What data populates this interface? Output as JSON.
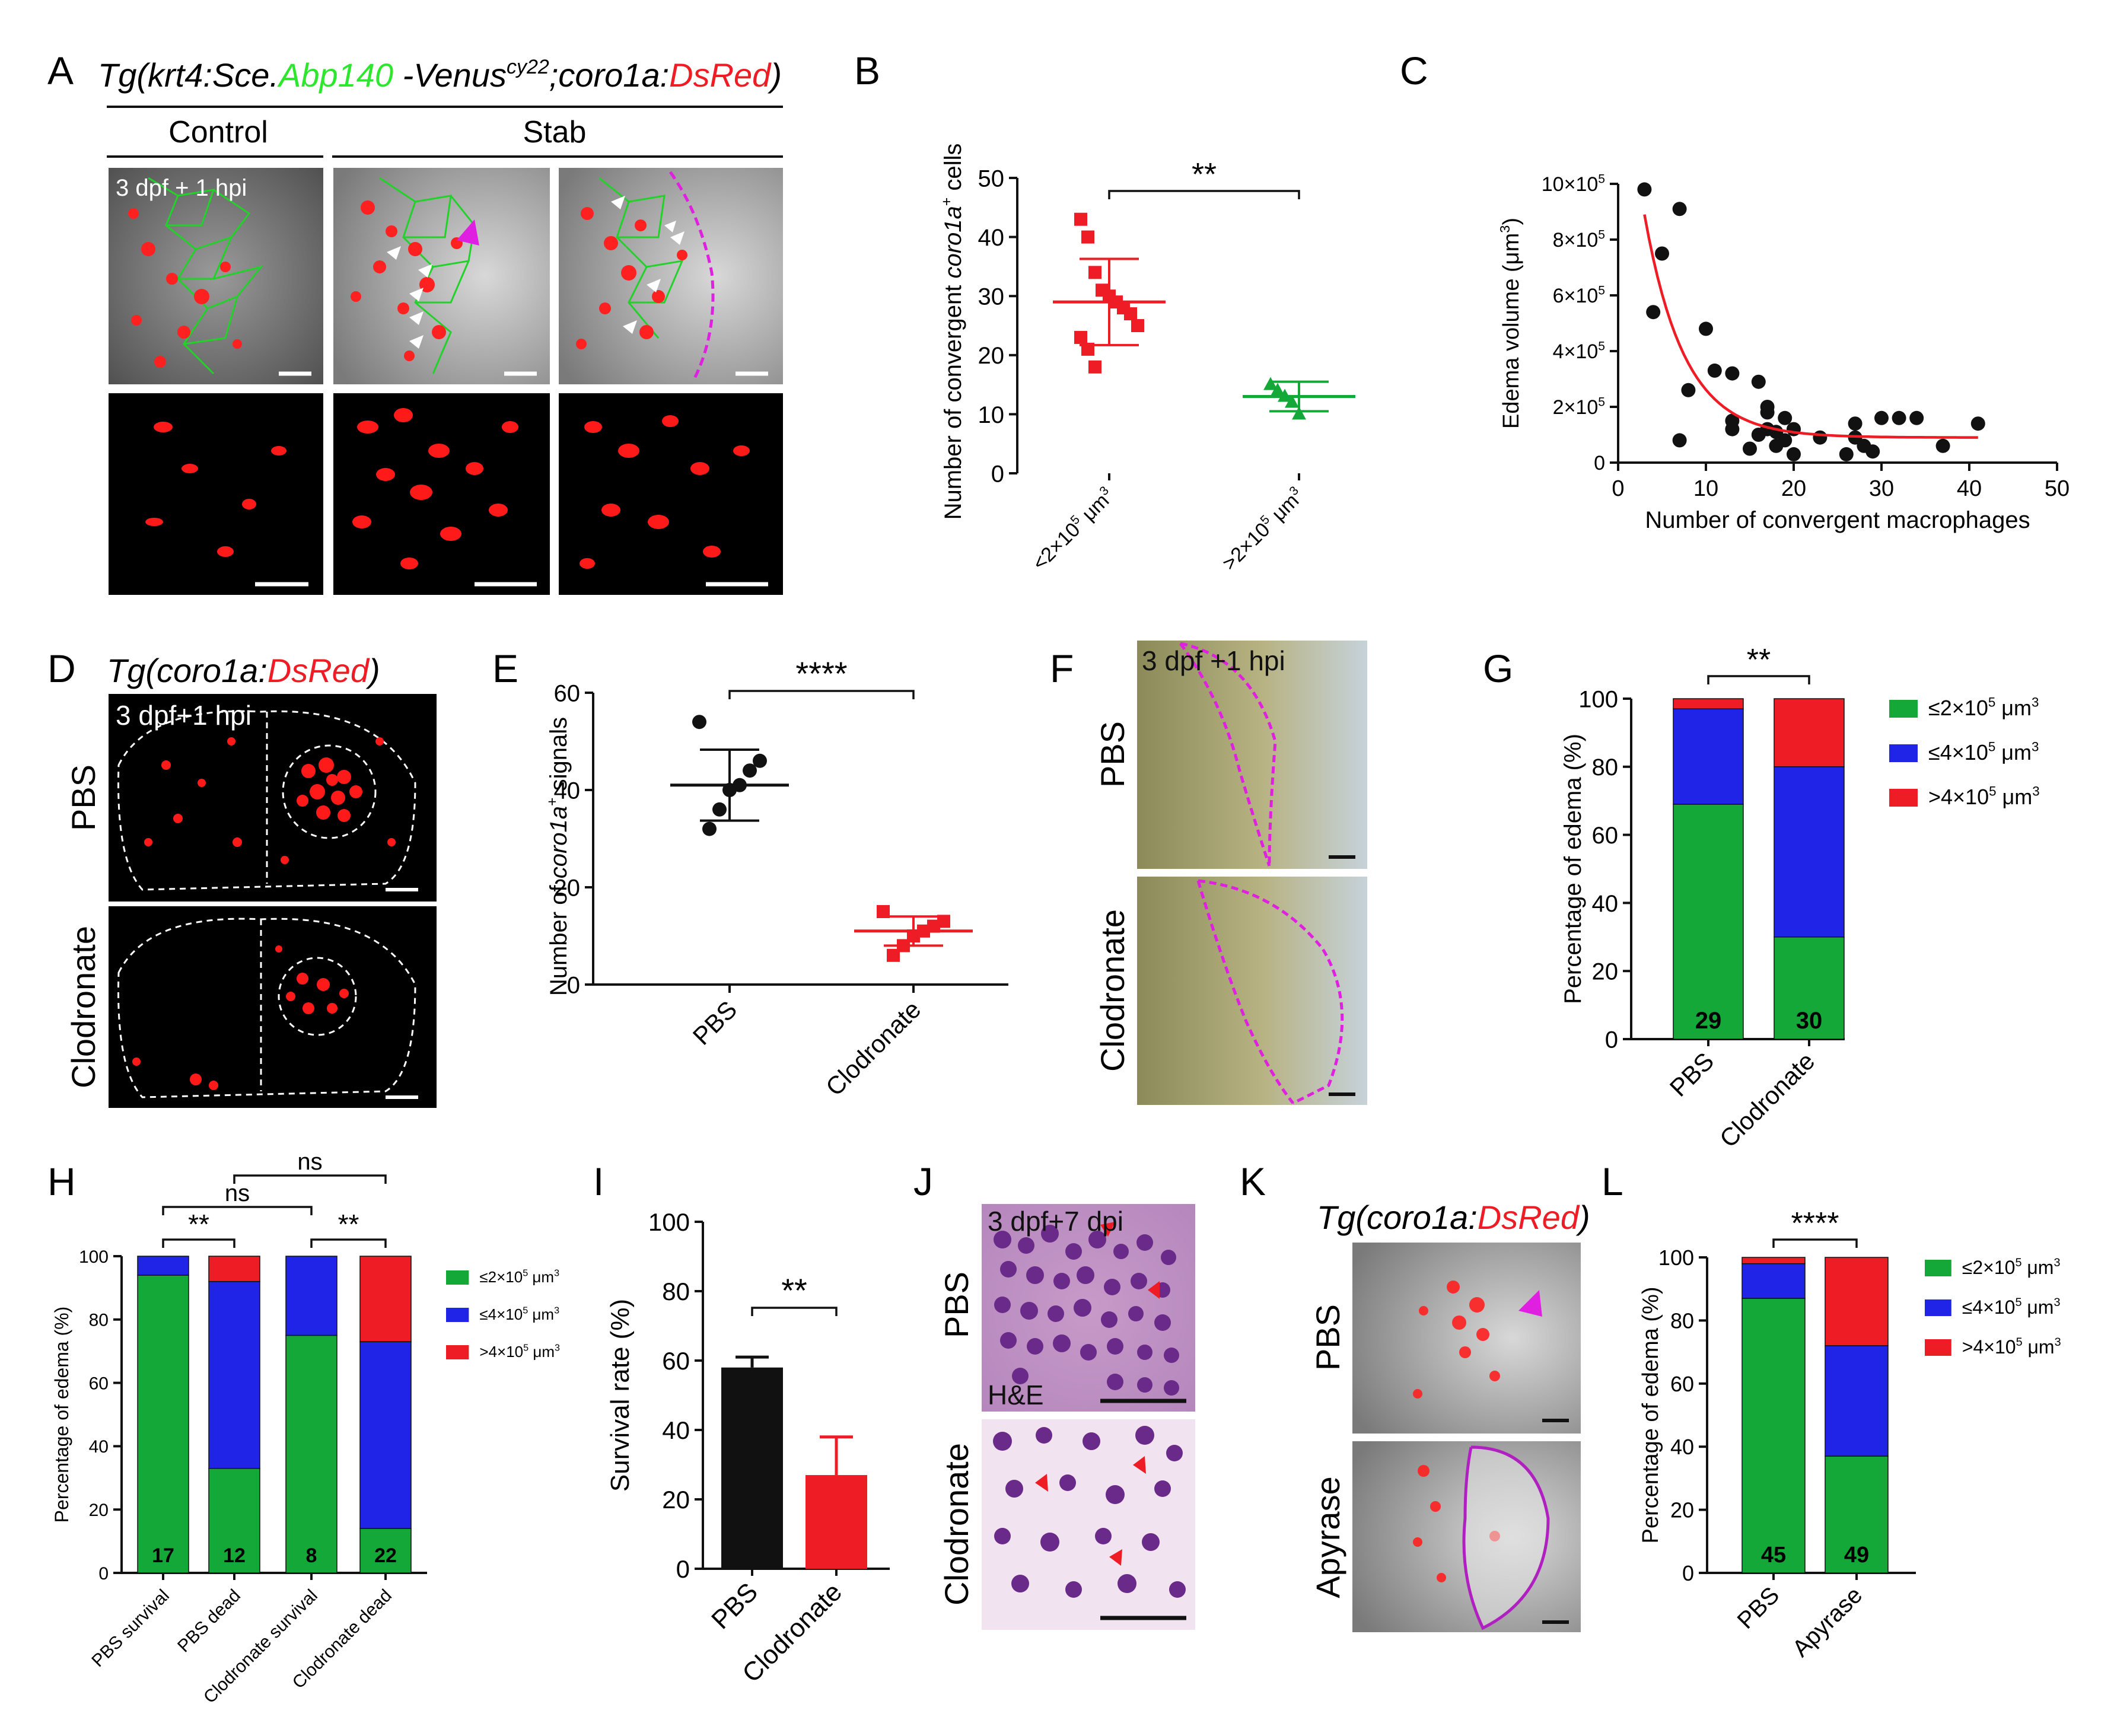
{
  "figure": {
    "panels": {
      "A": {
        "letter": "A",
        "title_parts": [
          "Tg(krt4:Sce.",
          "Abp140",
          " -Venus",
          "cy22",
          ";coro1a:",
          "DsRed",
          ")"
        ],
        "col_control": "Control",
        "col_stab": "Stab",
        "timepoint": "3 dpf + 1 hpi"
      },
      "D": {
        "letter": "D",
        "title_parts": [
          "Tg(coro1a:",
          "DsRed",
          ")"
        ],
        "timepoint": "3 dpf+1 hpi",
        "row1": "PBS",
        "row2": "Clodronate"
      },
      "F": {
        "letter": "F",
        "timepoint": "3 dpf +1 hpi",
        "row1": "PBS",
        "row2": "Clodronate"
      },
      "J": {
        "letter": "J",
        "timepoint": "3 dpf+7 dpi",
        "stain": "H&E",
        "row1": "PBS",
        "row2": "Clodronate"
      },
      "K": {
        "letter": "K",
        "title_parts": [
          "Tg(coro1a:",
          "DsRed",
          ")"
        ],
        "row1": "PBS",
        "row2": "Apyrase"
      }
    },
    "colors": {
      "red": "#ee1c24",
      "green": "#13a838",
      "blue": "#1f24e6",
      "magenta": "#e020e0",
      "black": "#111111"
    }
  },
  "chart_data": [
    {
      "id": "B",
      "letter": "B",
      "type": "scatter",
      "ylabel": "Number of convergent coro1a+ cells",
      "ylabel_parts": [
        "Number of convergent ",
        "coro1a",
        "+",
        " cells"
      ],
      "ylim": [
        0,
        50
      ],
      "yticks": [
        "0",
        "10",
        "20",
        "30",
        "40",
        "50"
      ],
      "categories": [
        "<2×10^5 μm^3",
        ">2×10^5 μm^3"
      ],
      "category_parts": [
        [
          "<2×10",
          "5",
          " μm",
          "3"
        ],
        [
          ">2×10",
          "5",
          " μm",
          "3"
        ]
      ],
      "series": [
        {
          "name": "<2×10^5 μm^3",
          "color": "#ee1c24",
          "values": [
            43,
            40,
            34,
            31,
            30,
            29,
            28,
            27,
            25,
            23,
            21,
            18
          ],
          "mean": 29,
          "sd": 7.3
        },
        {
          "name": ">2×10^5 μm^3",
          "color": "#13a838",
          "values": [
            15,
            14,
            13,
            12,
            10
          ],
          "mean": 13,
          "sd": 2.5
        }
      ],
      "significance": "**"
    },
    {
      "id": "C",
      "letter": "C",
      "type": "scatter",
      "xlabel": "Number of convergent macrophages",
      "ylabel": "Edema volume (μm^3)",
      "ylabel_parts": [
        "Edema volume (μm",
        "3",
        ")"
      ],
      "xlim": [
        0,
        50
      ],
      "ylim": [
        0,
        10
      ],
      "xticks": [
        "0",
        "10",
        "20",
        "30",
        "40",
        "50"
      ],
      "yticks": [
        [
          "0",
          ""
        ],
        [
          "2×10",
          "5"
        ],
        [
          "4×10",
          "5"
        ],
        [
          "6×10",
          "5"
        ],
        [
          "8×10",
          "5"
        ],
        [
          "10×10",
          "5"
        ]
      ],
      "y_unit_note": "values in ×10^5 μm^3",
      "points": [
        [
          3,
          9.8
        ],
        [
          4,
          5.4
        ],
        [
          5,
          7.5
        ],
        [
          7,
          9.1
        ],
        [
          7,
          0.8
        ],
        [
          8,
          2.6
        ],
        [
          10,
          4.8
        ],
        [
          11,
          3.3
        ],
        [
          13,
          3.2
        ],
        [
          13,
          1.2
        ],
        [
          13,
          1.5
        ],
        [
          15,
          0.5
        ],
        [
          16,
          2.9
        ],
        [
          16,
          1.0
        ],
        [
          17,
          1.8
        ],
        [
          17,
          2.0
        ],
        [
          17,
          1.2
        ],
        [
          18,
          0.6
        ],
        [
          18,
          1.1
        ],
        [
          19,
          1.6
        ],
        [
          19,
          0.8
        ],
        [
          20,
          0.3
        ],
        [
          20,
          1.2
        ],
        [
          23,
          0.9
        ],
        [
          26,
          0.3
        ],
        [
          27,
          1.4
        ],
        [
          27,
          0.9
        ],
        [
          28,
          0.6
        ],
        [
          29,
          0.4
        ],
        [
          30,
          1.6
        ],
        [
          32,
          1.6
        ],
        [
          34,
          1.6
        ],
        [
          37,
          0.6
        ],
        [
          41,
          1.4
        ]
      ],
      "fit": {
        "type": "exponential decay",
        "color": "#ee1c24",
        "a": 8.0,
        "k": 0.22,
        "plateau": 0.9,
        "x_start": 3,
        "x_end": 41
      }
    },
    {
      "id": "E",
      "letter": "E",
      "type": "scatter",
      "ylabel": "Number of coro1a+ signals",
      "ylabel_parts": [
        "Number of  ",
        "coro1a",
        "+",
        " signals"
      ],
      "ylim": [
        0,
        60
      ],
      "yticks": [
        "0",
        "20",
        "40",
        "60"
      ],
      "categories": [
        "PBS",
        "Clodronate"
      ],
      "series": [
        {
          "name": "PBS",
          "color": "#111111",
          "marker": "circle",
          "values": [
            54,
            46,
            44,
            41,
            40,
            36,
            32
          ],
          "mean": 41,
          "sd": 7.3
        },
        {
          "name": "Clodronate",
          "color": "#ee1c24",
          "marker": "square",
          "values": [
            15,
            13,
            12,
            11,
            10,
            8,
            6
          ],
          "mean": 11,
          "sd": 3.0
        }
      ],
      "significance": "****"
    },
    {
      "id": "G",
      "letter": "G",
      "type": "bar",
      "ylabel": "Percentage of edema (%)",
      "ylim": [
        0,
        100
      ],
      "yticks": [
        "0",
        "20",
        "40",
        "60",
        "80",
        "100"
      ],
      "categories": [
        "PBS",
        "Clodronate"
      ],
      "series": [
        {
          "name": "≤2×10^5 μm^3",
          "color": "#13a838",
          "values": [
            69,
            30
          ]
        },
        {
          "name": "≤4×10^5 μm^3",
          "color": "#1f24e6",
          "values": [
            28,
            50
          ]
        },
        {
          "name": ">4×10^5 μm^3",
          "color": "#ee1c24",
          "values": [
            3,
            20
          ]
        }
      ],
      "legend_parts": [
        [
          "≤2×10",
          "5",
          " μm",
          "3"
        ],
        [
          "≤4×10",
          "5",
          " μm",
          "3"
        ],
        [
          ">4×10",
          "5",
          " μm",
          "3"
        ]
      ],
      "n_labels": [
        "29",
        "30"
      ],
      "significance": "**"
    },
    {
      "id": "H",
      "letter": "H",
      "type": "bar",
      "ylabel": "Percentage of edema (%)",
      "ylim": [
        0,
        100
      ],
      "yticks": [
        "0",
        "20",
        "40",
        "60",
        "80",
        "100"
      ],
      "categories": [
        "PBS survival",
        "PBS dead",
        "Clodronate survival",
        "Clodronate dead"
      ],
      "series": [
        {
          "name": "≤2×10^5 μm^3",
          "color": "#13a838",
          "values": [
            94,
            33,
            75,
            14
          ]
        },
        {
          "name": "≤4×10^5 μm^3",
          "color": "#1f24e6",
          "values": [
            6,
            59,
            25,
            59
          ]
        },
        {
          "name": ">4×10^5 μm^3",
          "color": "#ee1c24",
          "values": [
            0,
            8,
            0,
            27
          ]
        }
      ],
      "legend_parts": [
        [
          "≤2×10",
          "5",
          " μm",
          "3"
        ],
        [
          "≤4×10",
          "5",
          " μm",
          "3"
        ],
        [
          ">4×10",
          "5",
          " μm",
          "3"
        ]
      ],
      "n_labels": [
        "17",
        "12",
        "8",
        "22"
      ],
      "comparisons": [
        [
          "PBS survival",
          "PBS dead",
          "**"
        ],
        [
          "Clodronate survival",
          "Clodronate dead",
          "**"
        ],
        [
          "PBS survival",
          "Clodronate survival",
          "ns"
        ],
        [
          "PBS dead",
          "Clodronate dead",
          "ns"
        ]
      ]
    },
    {
      "id": "I",
      "letter": "I",
      "type": "bar",
      "ylabel": "Survival rate (%)",
      "ylim": [
        0,
        100
      ],
      "yticks": [
        "0",
        "20",
        "40",
        "60",
        "80",
        "100"
      ],
      "categories": [
        "PBS",
        "Clodronate"
      ],
      "values": [
        58,
        27
      ],
      "errors": [
        3,
        11
      ],
      "colors": [
        "#111111",
        "#ee1c24"
      ],
      "significance": "**"
    },
    {
      "id": "L",
      "letter": "L",
      "type": "bar",
      "ylabel": "Percentage of edema (%)",
      "ylim": [
        0,
        100
      ],
      "yticks": [
        "0",
        "20",
        "40",
        "60",
        "80",
        "100"
      ],
      "categories": [
        "PBS",
        "Apyrase"
      ],
      "series": [
        {
          "name": "≤2×10^5 μm^3",
          "color": "#13a838",
          "values": [
            87,
            37
          ]
        },
        {
          "name": "≤4×10^5 μm^3",
          "color": "#1f24e6",
          "values": [
            11,
            35
          ]
        },
        {
          "name": ">4×10^5 μm^3",
          "color": "#ee1c24",
          "values": [
            2,
            28
          ]
        }
      ],
      "legend_parts": [
        [
          "≤2×10",
          "5",
          " μm",
          "3"
        ],
        [
          "≤4×10",
          "5",
          " μm",
          "3"
        ],
        [
          ">4×10",
          "5",
          " μm",
          "3"
        ]
      ],
      "n_labels": [
        "45",
        "49"
      ],
      "significance": "****"
    }
  ]
}
